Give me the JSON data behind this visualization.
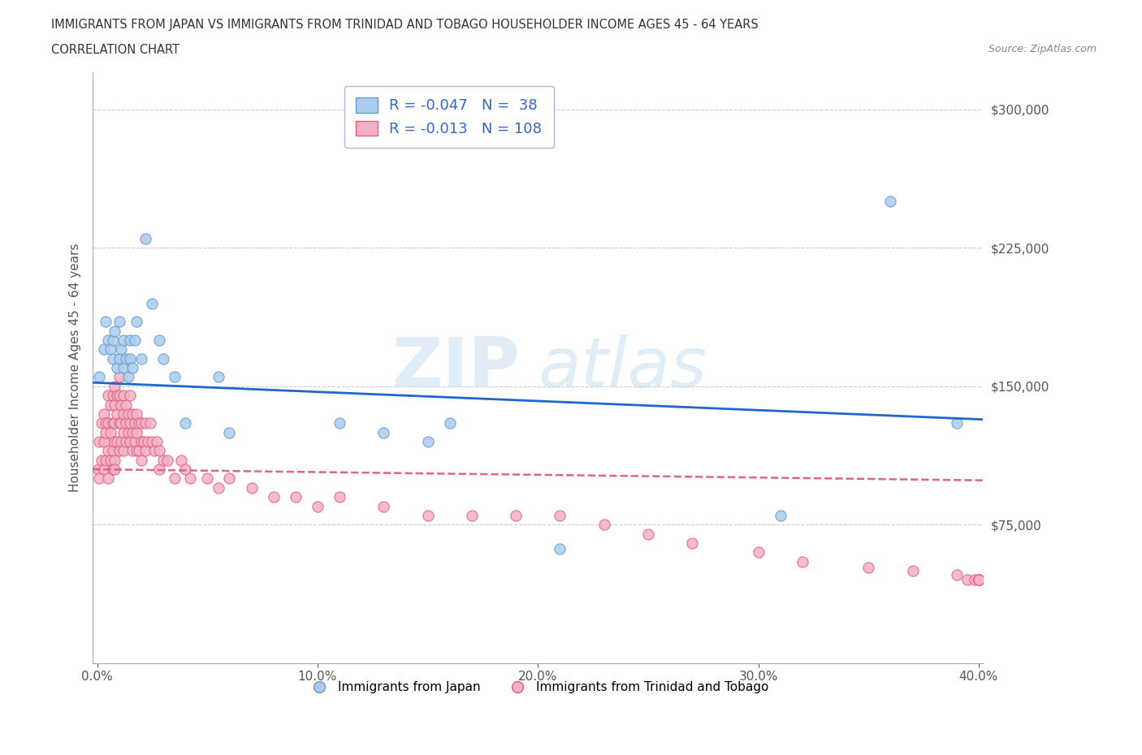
{
  "title_line1": "IMMIGRANTS FROM JAPAN VS IMMIGRANTS FROM TRINIDAD AND TOBAGO HOUSEHOLDER INCOME AGES 45 - 64 YEARS",
  "title_line2": "CORRELATION CHART",
  "source_text": "Source: ZipAtlas.com",
  "ylabel": "Householder Income Ages 45 - 64 years",
  "xlim": [
    -0.002,
    0.402
  ],
  "ylim": [
    0,
    320000
  ],
  "xtick_labels": [
    "0.0%",
    "10.0%",
    "20.0%",
    "30.0%",
    "40.0%"
  ],
  "xtick_values": [
    0.0,
    0.1,
    0.2,
    0.3,
    0.4
  ],
  "ytick_values": [
    75000,
    150000,
    225000,
    300000
  ],
  "ytick_labels": [
    "$75,000",
    "$150,000",
    "$225,000",
    "$300,000"
  ],
  "japan_color": "#aaccee",
  "japan_edge_color": "#6699cc",
  "tt_color": "#f5b0c5",
  "tt_edge_color": "#e06080",
  "japan_line_color": "#2266cc",
  "tt_line_color": "#dd6680",
  "watermark_zi": "ZIP",
  "watermark_atlas": "atlas",
  "legend_label_japan": "Immigrants from Japan",
  "legend_label_tt": "Immigrants from Trinidad and Tobago",
  "japan_R": -0.047,
  "japan_N": 38,
  "tt_R": -0.013,
  "tt_N": 108,
  "japan_line_y0": 152000,
  "japan_line_y1": 132000,
  "tt_line_y0": 105000,
  "tt_line_y1": 99000,
  "japan_scatter_x": [
    0.001,
    0.003,
    0.004,
    0.005,
    0.006,
    0.007,
    0.007,
    0.008,
    0.009,
    0.01,
    0.01,
    0.011,
    0.012,
    0.012,
    0.013,
    0.014,
    0.015,
    0.015,
    0.016,
    0.017,
    0.018,
    0.02,
    0.022,
    0.025,
    0.028,
    0.03,
    0.035,
    0.04,
    0.055,
    0.06,
    0.11,
    0.13,
    0.15,
    0.16,
    0.21,
    0.31,
    0.36,
    0.39
  ],
  "japan_scatter_y": [
    155000,
    170000,
    185000,
    175000,
    170000,
    175000,
    165000,
    180000,
    160000,
    165000,
    185000,
    170000,
    175000,
    160000,
    165000,
    155000,
    175000,
    165000,
    160000,
    175000,
    185000,
    165000,
    230000,
    195000,
    175000,
    165000,
    155000,
    130000,
    155000,
    125000,
    130000,
    125000,
    120000,
    130000,
    62000,
    80000,
    250000,
    130000
  ],
  "tt_scatter_x": [
    0.0005,
    0.001,
    0.001,
    0.002,
    0.002,
    0.003,
    0.003,
    0.003,
    0.004,
    0.004,
    0.004,
    0.005,
    0.005,
    0.005,
    0.005,
    0.006,
    0.006,
    0.006,
    0.007,
    0.007,
    0.007,
    0.007,
    0.008,
    0.008,
    0.008,
    0.008,
    0.008,
    0.008,
    0.009,
    0.009,
    0.009,
    0.01,
    0.01,
    0.01,
    0.01,
    0.011,
    0.011,
    0.011,
    0.012,
    0.012,
    0.012,
    0.012,
    0.013,
    0.013,
    0.013,
    0.014,
    0.014,
    0.015,
    0.015,
    0.015,
    0.016,
    0.016,
    0.016,
    0.017,
    0.017,
    0.018,
    0.018,
    0.018,
    0.019,
    0.019,
    0.02,
    0.02,
    0.02,
    0.021,
    0.022,
    0.022,
    0.023,
    0.024,
    0.025,
    0.026,
    0.027,
    0.028,
    0.028,
    0.03,
    0.032,
    0.035,
    0.038,
    0.04,
    0.042,
    0.05,
    0.055,
    0.06,
    0.07,
    0.08,
    0.09,
    0.1,
    0.11,
    0.13,
    0.15,
    0.17,
    0.19,
    0.21,
    0.23,
    0.25,
    0.27,
    0.3,
    0.32,
    0.35,
    0.37,
    0.39,
    0.395,
    0.398,
    0.4,
    0.4,
    0.4,
    0.4,
    0.4,
    0.4
  ],
  "tt_scatter_y": [
    105000,
    120000,
    100000,
    130000,
    110000,
    120000,
    135000,
    105000,
    130000,
    110000,
    125000,
    145000,
    130000,
    115000,
    100000,
    140000,
    125000,
    110000,
    145000,
    130000,
    115000,
    105000,
    150000,
    140000,
    130000,
    120000,
    110000,
    105000,
    145000,
    135000,
    120000,
    155000,
    145000,
    130000,
    115000,
    140000,
    130000,
    120000,
    145000,
    135000,
    125000,
    115000,
    140000,
    130000,
    120000,
    135000,
    125000,
    145000,
    130000,
    120000,
    135000,
    125000,
    115000,
    130000,
    120000,
    135000,
    125000,
    115000,
    130000,
    115000,
    130000,
    120000,
    110000,
    120000,
    130000,
    115000,
    120000,
    130000,
    120000,
    115000,
    120000,
    115000,
    105000,
    110000,
    110000,
    100000,
    110000,
    105000,
    100000,
    100000,
    95000,
    100000,
    95000,
    90000,
    90000,
    85000,
    90000,
    85000,
    80000,
    80000,
    80000,
    80000,
    75000,
    70000,
    65000,
    60000,
    55000,
    52000,
    50000,
    48000,
    45000,
    45000,
    45000,
    45000,
    45000,
    45000,
    45000,
    45000
  ]
}
